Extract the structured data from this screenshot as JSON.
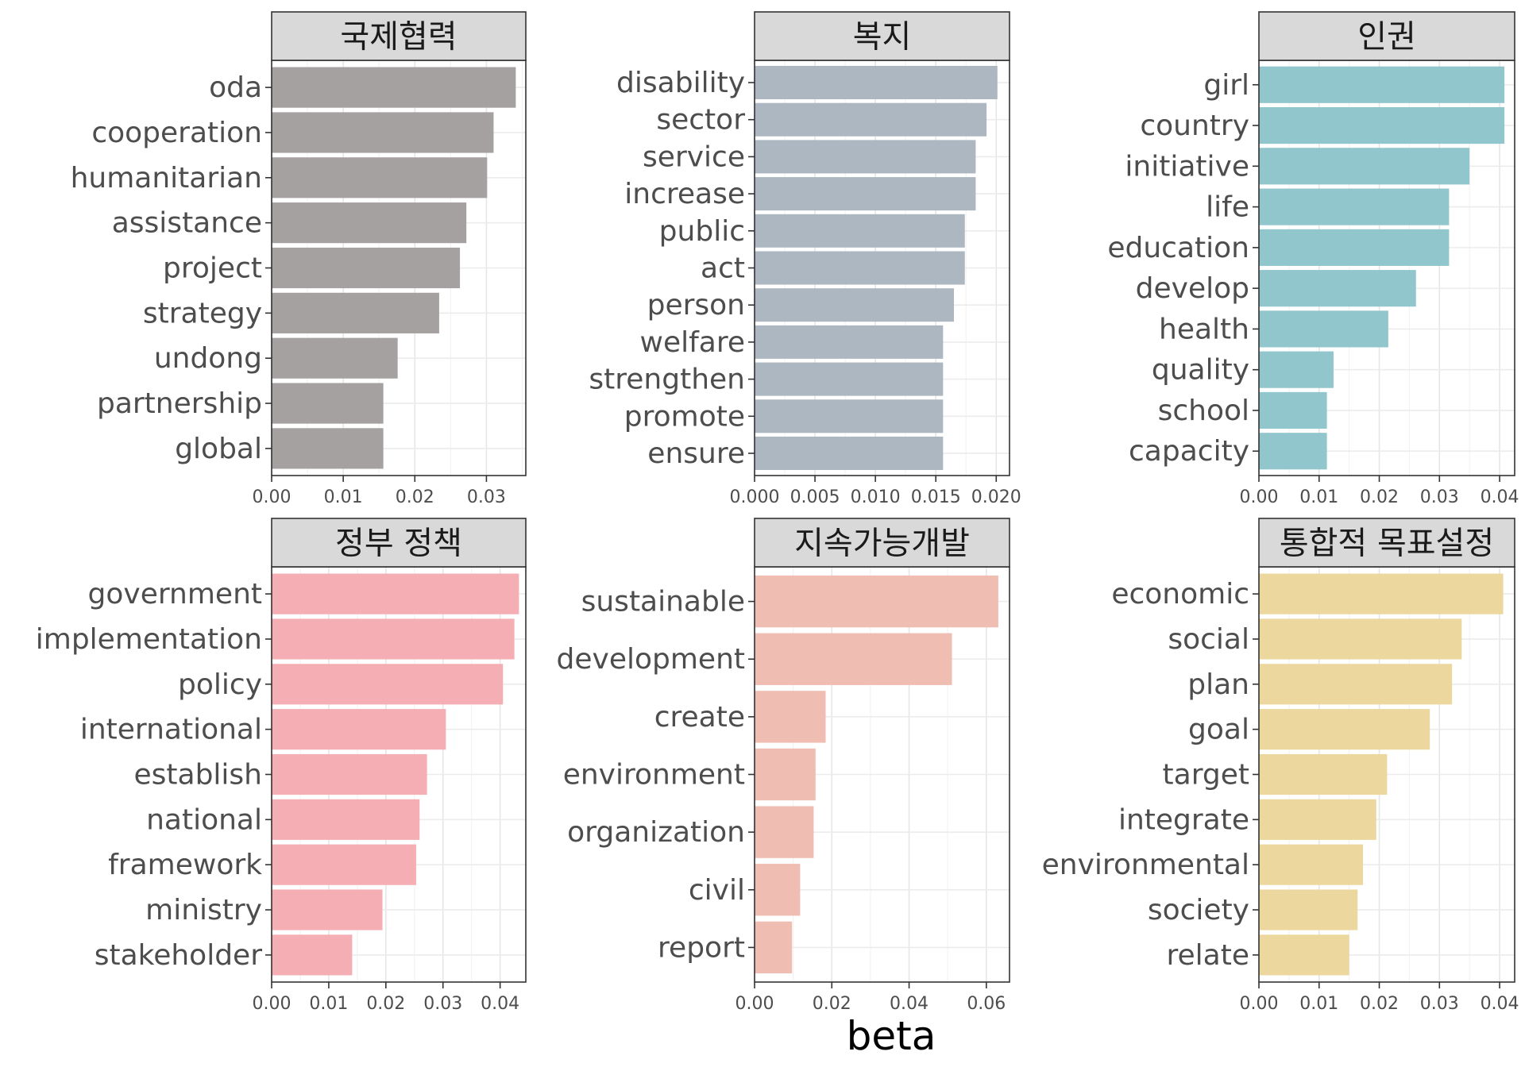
{
  "chart_data": {
    "type": "bar",
    "orientation": "horizontal",
    "xlabel": "beta",
    "grid": true,
    "panels": [
      {
        "title": "국제협력",
        "color": "#A6A1A1",
        "xlim": [
          0,
          0.0355
        ],
        "xticks": [
          0.0,
          0.01,
          0.02,
          0.03
        ],
        "tick_labels": [
          "0.00",
          "0.01",
          "0.02",
          "0.03"
        ],
        "categories": [
          "oda",
          "cooperation",
          "humanitarian",
          "assistance",
          "project",
          "strategy",
          "undong",
          "partnership",
          "global"
        ],
        "values": [
          0.0341,
          0.031,
          0.0301,
          0.0272,
          0.0263,
          0.0234,
          0.0176,
          0.0156,
          0.0156
        ]
      },
      {
        "title": "복지",
        "color": "#ACB7C1",
        "xlim": [
          0,
          0.0211
        ],
        "xticks": [
          0.0,
          0.005,
          0.01,
          0.015,
          0.02
        ],
        "tick_labels": [
          "0.000",
          "0.005",
          "0.010",
          "0.015",
          "0.020"
        ],
        "categories": [
          "disability",
          "sector",
          "service",
          "increase",
          "public",
          "act",
          "person",
          "welfare",
          "strengthen",
          "promote",
          "ensure"
        ],
        "values": [
          0.0201,
          0.0192,
          0.0183,
          0.0183,
          0.0174,
          0.0174,
          0.0165,
          0.0156,
          0.0156,
          0.0156,
          0.0156
        ]
      },
      {
        "title": "인권",
        "color": "#92C6CD",
        "xlim": [
          0,
          0.0425
        ],
        "xticks": [
          0.0,
          0.01,
          0.02,
          0.03,
          0.04
        ],
        "tick_labels": [
          "0.00",
          "0.01",
          "0.02",
          "0.03",
          "0.04"
        ],
        "categories": [
          "girl",
          "country",
          "initiative",
          "life",
          "education",
          "develop",
          "health",
          "quality",
          "school",
          "capacity"
        ],
        "values": [
          0.0408,
          0.0408,
          0.035,
          0.0316,
          0.0316,
          0.0261,
          0.0215,
          0.0124,
          0.0113,
          0.0113
        ]
      },
      {
        "title": "정부 정책",
        "color": "#F4AEB4",
        "xlim": [
          0,
          0.0445
        ],
        "xticks": [
          0.0,
          0.01,
          0.02,
          0.03,
          0.04
        ],
        "tick_labels": [
          "0.00",
          "0.01",
          "0.02",
          "0.03",
          "0.04"
        ],
        "categories": [
          "government",
          "implementation",
          "policy",
          "international",
          "establish",
          "national",
          "framework",
          "ministry",
          "stakeholder"
        ],
        "values": [
          0.0433,
          0.0425,
          0.0405,
          0.0305,
          0.0272,
          0.0259,
          0.0253,
          0.0194,
          0.0141
        ]
      },
      {
        "title": "지속가능개발",
        "color": "#F0BDB2",
        "xlim": [
          0,
          0.066
        ],
        "xticks": [
          0.0,
          0.02,
          0.04,
          0.06
        ],
        "tick_labels": [
          "0.00",
          "0.02",
          "0.04",
          "0.06"
        ],
        "categories": [
          "sustainable",
          "development",
          "create",
          "environment",
          "organization",
          "civil",
          "report"
        ],
        "values": [
          0.0631,
          0.0511,
          0.0184,
          0.0158,
          0.0153,
          0.0118,
          0.0097
        ]
      },
      {
        "title": "통합적 목표설정",
        "color": "#ECD79E",
        "xlim": [
          0,
          0.0425
        ],
        "xticks": [
          0.0,
          0.01,
          0.02,
          0.03,
          0.04
        ],
        "tick_labels": [
          "0.00",
          "0.01",
          "0.02",
          "0.03",
          "0.04"
        ],
        "categories": [
          "economic",
          "social",
          "plan",
          "goal",
          "target",
          "integrate",
          "environmental",
          "society",
          "relate"
        ],
        "values": [
          0.0406,
          0.0337,
          0.0321,
          0.0284,
          0.0213,
          0.0195,
          0.0173,
          0.0164,
          0.015
        ]
      }
    ]
  }
}
